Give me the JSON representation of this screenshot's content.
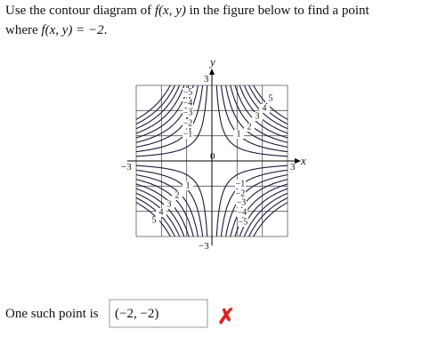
{
  "question": {
    "line1": [
      "Use the contour diagram of ",
      "f(x, y)",
      " in the figure below to find a point"
    ],
    "line2": [
      "where ",
      "f(x, y) = −2",
      "."
    ]
  },
  "figure": {
    "x_label": "x",
    "y_label": "y",
    "origin": "0",
    "x_min_label": "−3",
    "x_max_label": "3",
    "y_max_label": "3",
    "y_min_label": "−3",
    "top_left_labels": [
      "−5",
      "−4",
      "−3",
      "−2",
      "−1"
    ],
    "top_right_labels": [
      "5",
      "4",
      "3",
      "2",
      "1"
    ],
    "bottom_left_labels": [
      "1",
      "2",
      "3",
      "4",
      "5"
    ],
    "bottom_right_labels": [
      "−1",
      "−2",
      "−3",
      "−4",
      "−5"
    ]
  },
  "answer": {
    "prompt": "One such point is",
    "input": "(−2, −2)",
    "mark": "✗"
  }
}
